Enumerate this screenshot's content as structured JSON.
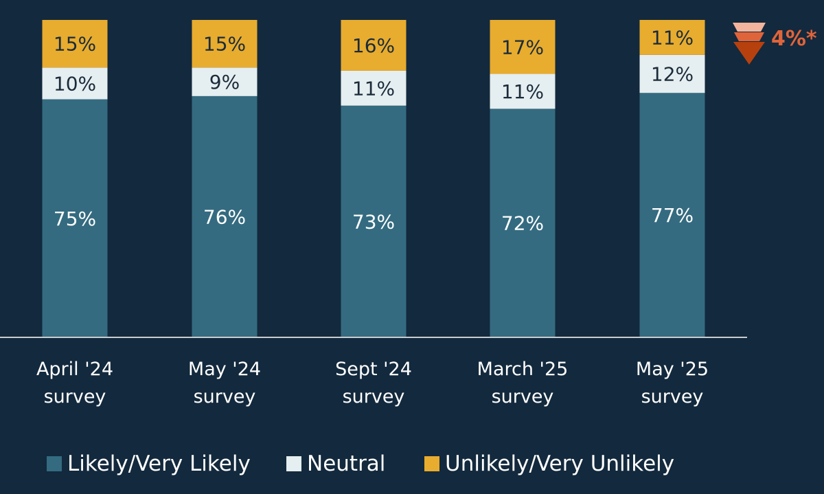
{
  "colors": {
    "background": "#13293d",
    "baseline": "#c9ccd0",
    "text_light": "#ffffff",
    "text_dark": "#1b2b3a",
    "indicator_text": "#e0643a",
    "indicator_arrow_light": "#f2b49d",
    "indicator_arrow_mid": "#e0643a",
    "indicator_arrow_dark": "#b7410e"
  },
  "chart_data": {
    "type": "bar",
    "stacked": true,
    "categories": [
      [
        "April '24",
        "survey"
      ],
      [
        "May '24",
        "survey"
      ],
      [
        "Sept '24",
        "survey"
      ],
      [
        "March '25",
        "survey"
      ],
      [
        "May '25",
        "survey"
      ]
    ],
    "series": [
      {
        "name": "Likely/Very Likely",
        "values": [
          75,
          76,
          73,
          72,
          77
        ],
        "labels": [
          "75%",
          "76%",
          "73%",
          "72%",
          "77%"
        ],
        "color": "#346b80",
        "label_color": "#ffffff"
      },
      {
        "name": "Neutral",
        "values": [
          10,
          9,
          11,
          11,
          12
        ],
        "labels": [
          "10%",
          "9%",
          "11%",
          "11%",
          "12%"
        ],
        "color": "#e5eef0",
        "label_color": "#1b2b3a"
      },
      {
        "name": "Unlikely/Very Unlikely",
        "values": [
          15,
          15,
          16,
          17,
          11
        ],
        "labels": [
          "15%",
          "15%",
          "16%",
          "17%",
          "11%"
        ],
        "color": "#e8ac2e",
        "label_color": "#1b2b3a"
      }
    ],
    "ylim": [
      0,
      100
    ],
    "grid": false,
    "legend_position": "bottom-left",
    "annotation": {
      "text": "4%*",
      "direction": "down"
    }
  }
}
